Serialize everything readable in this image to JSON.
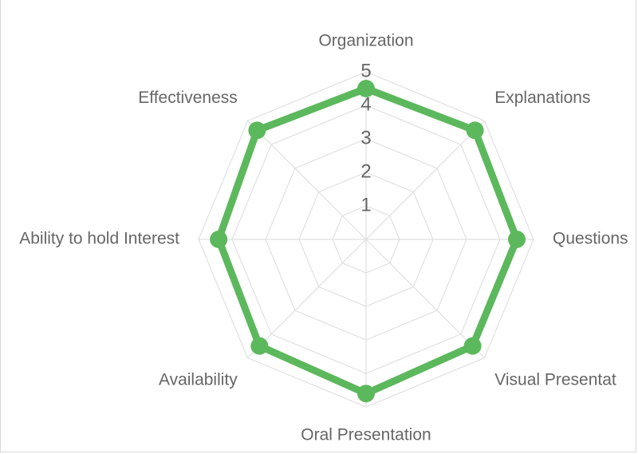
{
  "chart_data": {
    "type": "radar",
    "categories": [
      "Organization",
      "Explanations",
      "Questions",
      "Visual Presentat",
      "Oral Presentation",
      "Availability",
      "Ability to hold Interest",
      "Effectiveness"
    ],
    "series": [
      {
        "values": [
          4.5,
          4.6,
          4.5,
          4.5,
          4.6,
          4.5,
          4.4,
          4.6
        ],
        "color": "#5cb85c"
      }
    ],
    "r_ticks": [
      "1",
      "2",
      "3",
      "4",
      "5"
    ],
    "r_range": [
      0,
      5
    ],
    "grid": true,
    "grid_color": "#e0e0e0",
    "legend": "none"
  }
}
